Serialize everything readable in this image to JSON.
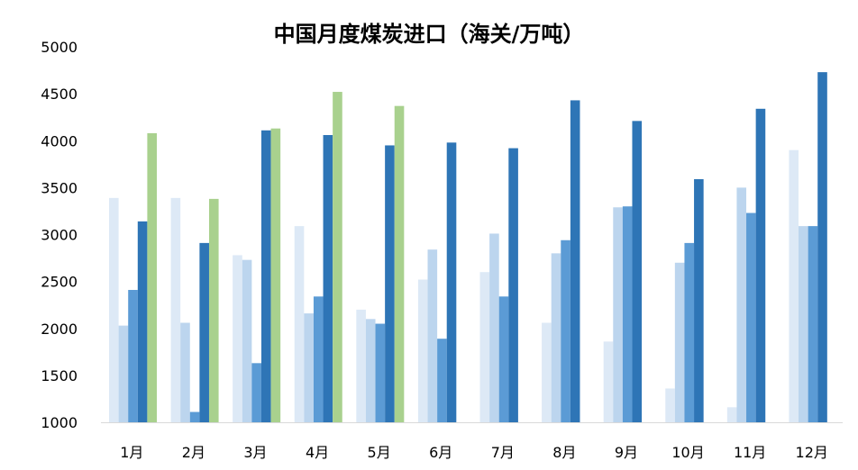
{
  "chart_data": {
    "type": "bar",
    "title": "中国月度煤炭进口（海关/万吨）",
    "categories": [
      "1月",
      "2月",
      "3月",
      "4月",
      "5月",
      "6月",
      "7月",
      "8月",
      "9月",
      "10月",
      "11月",
      "12月"
    ],
    "ylim": [
      1000,
      5000
    ],
    "yticks": [
      1000,
      1500,
      2000,
      2500,
      3000,
      3500,
      4000,
      4500,
      5000
    ],
    "grid": false,
    "legend": "none",
    "series": [
      {
        "color": "#dde9f6",
        "values": [
          3390,
          3390,
          2780,
          3090,
          2200,
          2520,
          2600,
          2060,
          1860,
          1360,
          1160,
          3900
        ]
      },
      {
        "color": "#bcd5ee",
        "values": [
          2030,
          2060,
          2730,
          2160,
          2100,
          2840,
          3010,
          2800,
          3290,
          2700,
          3500,
          3090
        ]
      },
      {
        "color": "#5b9bd5",
        "values": [
          2410,
          1110,
          1630,
          2340,
          2050,
          1890,
          2340,
          2940,
          3300,
          2910,
          3230,
          3090
        ]
      },
      {
        "color": "#2e75b6",
        "values": [
          3140,
          2910,
          4110,
          4060,
          3950,
          3980,
          3920,
          4430,
          4210,
          3590,
          4340,
          4730
        ]
      },
      {
        "color": "#a9d18e",
        "values": [
          4080,
          3380,
          4130,
          4520,
          4370,
          null,
          null,
          null,
          null,
          null,
          null,
          null
        ]
      }
    ]
  }
}
